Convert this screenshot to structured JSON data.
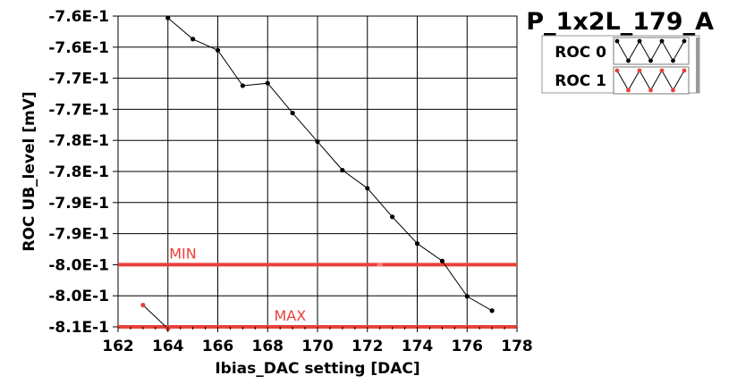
{
  "chart_data": {
    "type": "line",
    "title": "P_1x2L_179_A",
    "xlabel": "Ibias_DAC setting [DAC]",
    "ylabel": "ROC UB_level [mV]",
    "xlim": [
      162,
      178
    ],
    "ylim": [
      -0.81,
      -0.76
    ],
    "x_ticks": [
      162,
      164,
      166,
      168,
      170,
      172,
      174,
      176,
      178
    ],
    "x_tick_labels": [
      "162",
      "164",
      "166",
      "168",
      "170",
      "172",
      "174",
      "176",
      "178"
    ],
    "y_ticks": [
      -0.76,
      -0.765,
      -0.77,
      -0.775,
      -0.78,
      -0.785,
      -0.79,
      -0.795,
      -0.8,
      -0.805,
      -0.81
    ],
    "y_tick_labels": [
      "-7.6E-1",
      "-7.6E-1",
      "-7.7E-1",
      "-7.7E-1",
      "-7.8E-1",
      "-7.8E-1",
      "-7.9E-1",
      "-7.9E-1",
      "-8.0E-1",
      "-8.0E-1",
      "-8.1E-1"
    ],
    "grid": true,
    "legend_position": "top-right",
    "series": [
      {
        "name": "ROC 0",
        "color": "#000000",
        "x": [
          164,
          165,
          166,
          167,
          168,
          169,
          170,
          171,
          172,
          173,
          174,
          175,
          176,
          177
        ],
        "values": [
          -0.7603,
          -0.7637,
          -0.7655,
          -0.7712,
          -0.7708,
          -0.7756,
          -0.7802,
          -0.7848,
          -0.7877,
          -0.7923,
          -0.7966,
          -0.7994,
          -0.8051,
          -0.8074
        ]
      },
      {
        "name": "ROC 1",
        "color": "#e8413a",
        "x": [
          163,
          164
        ],
        "values": [
          -0.8065,
          -0.8103
        ]
      }
    ],
    "annotations": [
      {
        "label": "MIN",
        "y": -0.8,
        "color": "#e8413a",
        "label_x": 164.6
      },
      {
        "label": "MAX",
        "y": -0.81,
        "color": "#e8413a",
        "label_x": 168.9
      }
    ]
  }
}
